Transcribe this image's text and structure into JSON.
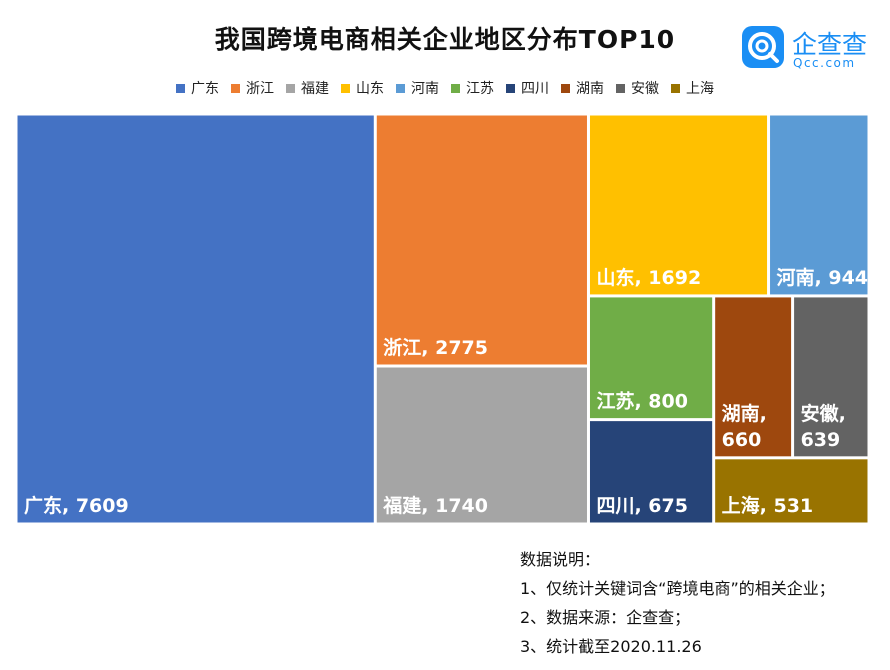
{
  "title": "我国跨境电商相关企业地区分布TOP10",
  "logo": {
    "name": "企查查",
    "sub": "Qcc.com",
    "icon": "qcc-q-logo-icon",
    "color": "#1a8ef4"
  },
  "notes": [
    "数据说明：",
    "1、仅统计关键词含“跨境电商”的相关企业；",
    "2、数据来源：企查查；",
    "3、统计截至2020.11.26"
  ],
  "chart_data": {
    "type": "treemap",
    "title": "我国跨境电商相关企业地区分布TOP10",
    "legend_position": "top",
    "series": [
      {
        "name": "广东",
        "value": 7609,
        "label": "广东, 7609",
        "color": "#4472c4"
      },
      {
        "name": "浙江",
        "value": 2775,
        "label": "浙江, 2775",
        "color": "#ed7d31"
      },
      {
        "name": "福建",
        "value": 1740,
        "label": "福建, 1740",
        "color": "#a5a5a5"
      },
      {
        "name": "山东",
        "value": 1692,
        "label": "山东, 1692",
        "color": "#ffc000"
      },
      {
        "name": "河南",
        "value": 944,
        "label": "河南, 944",
        "color": "#5b9bd5"
      },
      {
        "name": "江苏",
        "value": 800,
        "label": "江苏, 800",
        "color": "#70ad47"
      },
      {
        "name": "四川",
        "value": 675,
        "label": "四川, 675",
        "color": "#264478"
      },
      {
        "name": "湖南",
        "value": 660,
        "label_lines": [
          "湖南,",
          "660"
        ],
        "color": "#9e480e"
      },
      {
        "name": "安徽",
        "value": 639,
        "label_lines": [
          "安徽,",
          "639"
        ],
        "color": "#636363"
      },
      {
        "name": "上海",
        "value": 531,
        "label": "上海, 531",
        "color": "#997300"
      }
    ]
  }
}
